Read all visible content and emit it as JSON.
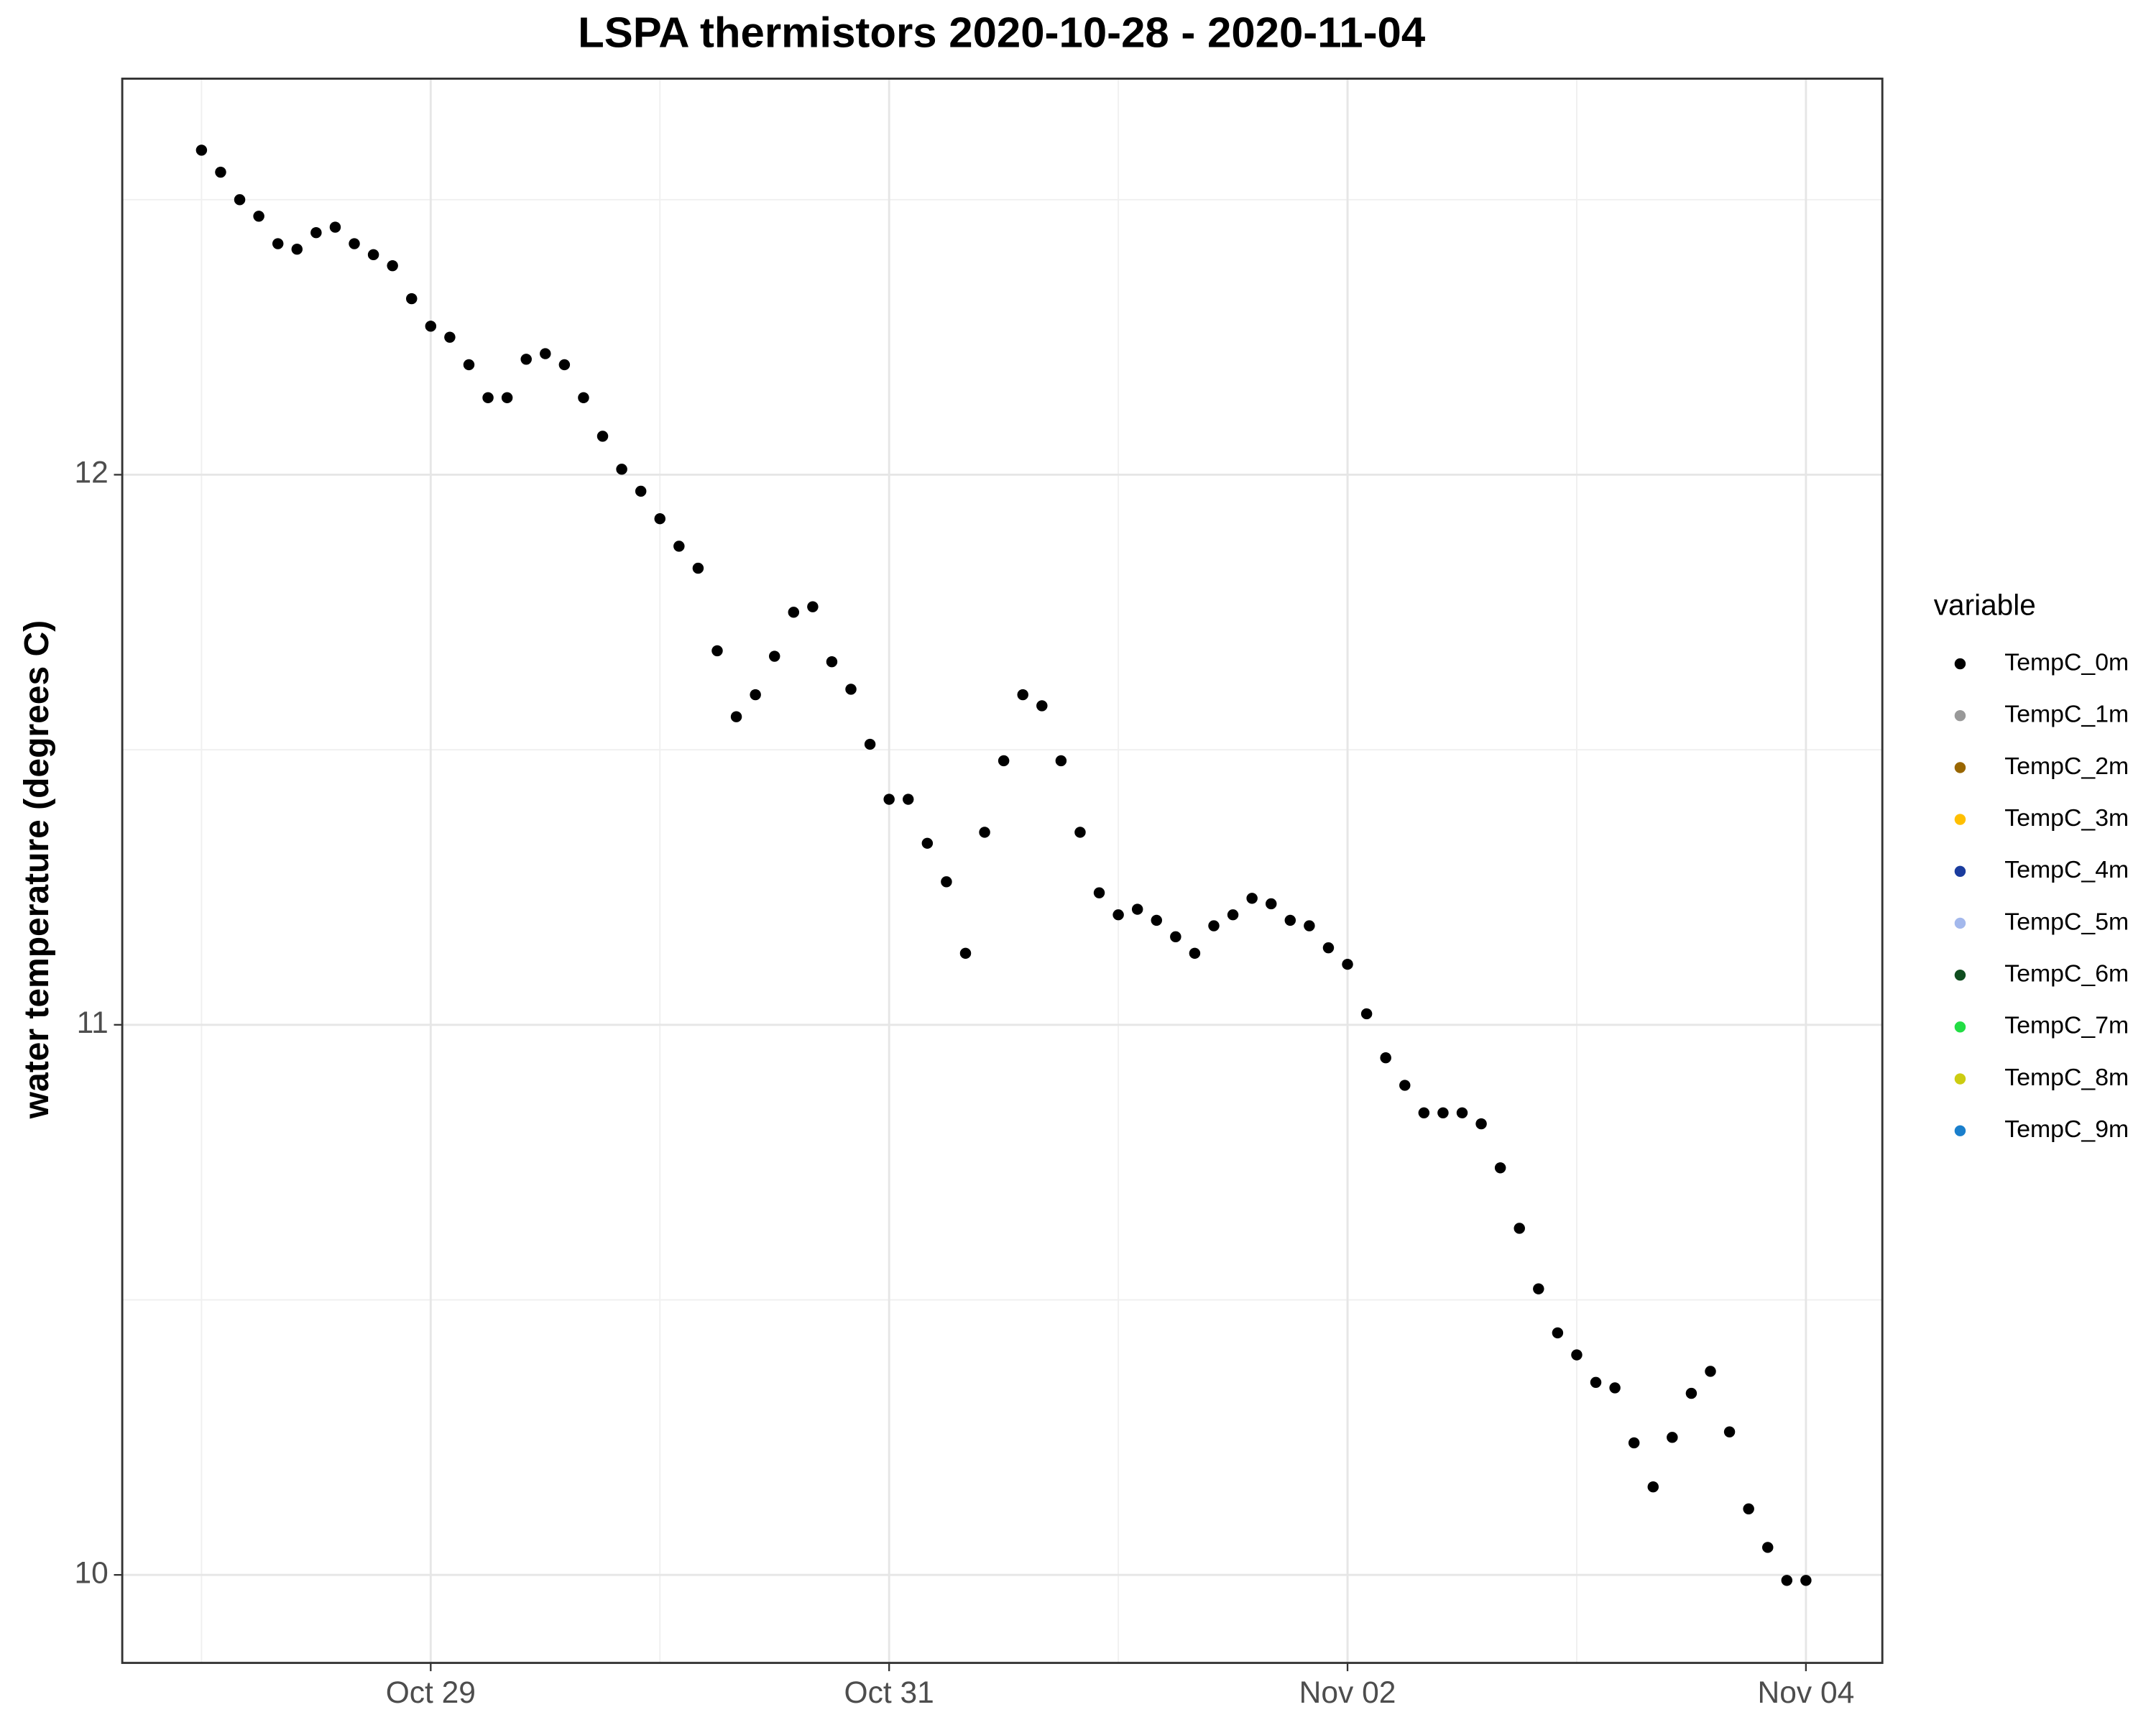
{
  "chart_data": {
    "type": "scatter",
    "title": "LSPA thermistors 2020-10-28 - 2020-11-04",
    "y_label": "water temperature (degrees C)",
    "legend_title": "variable",
    "legend_position": "right",
    "grid": true,
    "x": [
      "2020-10-28T00:00",
      "2020-10-28T02:00",
      "2020-10-28T04:00",
      "2020-10-28T06:00",
      "2020-10-28T08:00",
      "2020-10-28T10:00",
      "2020-10-28T12:00",
      "2020-10-28T14:00",
      "2020-10-28T16:00",
      "2020-10-28T18:00",
      "2020-10-28T20:00",
      "2020-10-28T22:00",
      "2020-10-29T00:00",
      "2020-10-29T02:00",
      "2020-10-29T04:00",
      "2020-10-29T06:00",
      "2020-10-29T08:00",
      "2020-10-29T10:00",
      "2020-10-29T12:00",
      "2020-10-29T14:00",
      "2020-10-29T16:00",
      "2020-10-29T18:00",
      "2020-10-29T20:00",
      "2020-10-29T22:00",
      "2020-10-30T00:00",
      "2020-10-30T02:00",
      "2020-10-30T04:00",
      "2020-10-30T06:00",
      "2020-10-30T08:00",
      "2020-10-30T10:00",
      "2020-10-30T12:00",
      "2020-10-30T14:00",
      "2020-10-30T16:00",
      "2020-10-30T18:00",
      "2020-10-30T20:00",
      "2020-10-30T22:00",
      "2020-10-31T00:00",
      "2020-10-31T02:00",
      "2020-10-31T04:00",
      "2020-10-31T06:00",
      "2020-10-31T08:00",
      "2020-10-31T10:00",
      "2020-10-31T12:00",
      "2020-10-31T14:00",
      "2020-10-31T16:00",
      "2020-10-31T18:00",
      "2020-10-31T20:00",
      "2020-10-31T22:00",
      "2020-11-01T00:00",
      "2020-11-01T02:00",
      "2020-11-01T04:00",
      "2020-11-01T06:00",
      "2020-11-01T08:00",
      "2020-11-01T10:00",
      "2020-11-01T12:00",
      "2020-11-01T14:00",
      "2020-11-01T16:00",
      "2020-11-01T18:00",
      "2020-11-01T20:00",
      "2020-11-01T22:00",
      "2020-11-02T00:00",
      "2020-11-02T02:00",
      "2020-11-02T04:00",
      "2020-11-02T06:00",
      "2020-11-02T08:00",
      "2020-11-02T10:00",
      "2020-11-02T12:00",
      "2020-11-02T14:00",
      "2020-11-02T16:00",
      "2020-11-02T18:00",
      "2020-11-02T20:00",
      "2020-11-02T22:00",
      "2020-11-03T00:00",
      "2020-11-03T02:00",
      "2020-11-03T04:00",
      "2020-11-03T06:00",
      "2020-11-03T08:00",
      "2020-11-03T10:00",
      "2020-11-03T12:00",
      "2020-11-03T14:00",
      "2020-11-03T16:00",
      "2020-11-03T18:00",
      "2020-11-03T20:00",
      "2020-11-03T22:00",
      "2020-11-04T00:00"
    ],
    "series": [
      {
        "name": "TempC_0m",
        "color": "#000000",
        "values": [
          12.59,
          12.55,
          12.5,
          12.47,
          12.42,
          12.41,
          12.44,
          12.45,
          12.42,
          12.4,
          12.38,
          12.32,
          12.27,
          12.25,
          12.2,
          12.14,
          12.14,
          12.21,
          12.22,
          12.2,
          12.14,
          12.07,
          12.01,
          11.97,
          11.92,
          11.87,
          11.83,
          11.68,
          11.56,
          11.6,
          11.67,
          11.75,
          11.76,
          11.66,
          11.61,
          11.51,
          11.41,
          11.41,
          11.33,
          11.26,
          11.13,
          11.35,
          11.48,
          11.6,
          11.58,
          11.48,
          11.35,
          11.24,
          11.2,
          11.21,
          11.19,
          11.16,
          11.13,
          11.18,
          11.2,
          11.23,
          11.22,
          11.19,
          11.18,
          11.14,
          11.11,
          11.02,
          10.94,
          10.89,
          10.84,
          10.84,
          10.84,
          10.82,
          10.74,
          10.63,
          10.52,
          10.44,
          10.4,
          10.35,
          10.34,
          10.24,
          10.16,
          10.25,
          10.33,
          10.37,
          10.26,
          10.12,
          10.05,
          9.99,
          9.99
        ]
      },
      {
        "name": "TempC_1m",
        "color": "#999999"
      },
      {
        "name": "TempC_2m",
        "color": "#996600"
      },
      {
        "name": "TempC_3m",
        "color": "#ffbf00"
      },
      {
        "name": "TempC_4m",
        "color": "#1a3c9e"
      },
      {
        "name": "TempC_5m",
        "color": "#a3b8ec"
      },
      {
        "name": "TempC_6m",
        "color": "#0f4d1f"
      },
      {
        "name": "TempC_7m",
        "color": "#22dd44"
      },
      {
        "name": "TempC_8m",
        "color": "#cccc11"
      },
      {
        "name": "TempC_9m",
        "color": "#1a7fcc"
      }
    ],
    "xlim": [
      "2020-10-27T15:42",
      "2020-11-04T08:00"
    ],
    "xticks": [
      {
        "value": "2020-10-29T00:00",
        "label": "Oct 29"
      },
      {
        "value": "2020-10-31T00:00",
        "label": "Oct 31"
      },
      {
        "value": "2020-11-02T00:00",
        "label": "Nov 02"
      },
      {
        "value": "2020-11-04T00:00",
        "label": "Nov 04"
      }
    ],
    "ylim": [
      9.84,
      12.72
    ],
    "yticks": [
      10,
      11,
      12
    ]
  }
}
